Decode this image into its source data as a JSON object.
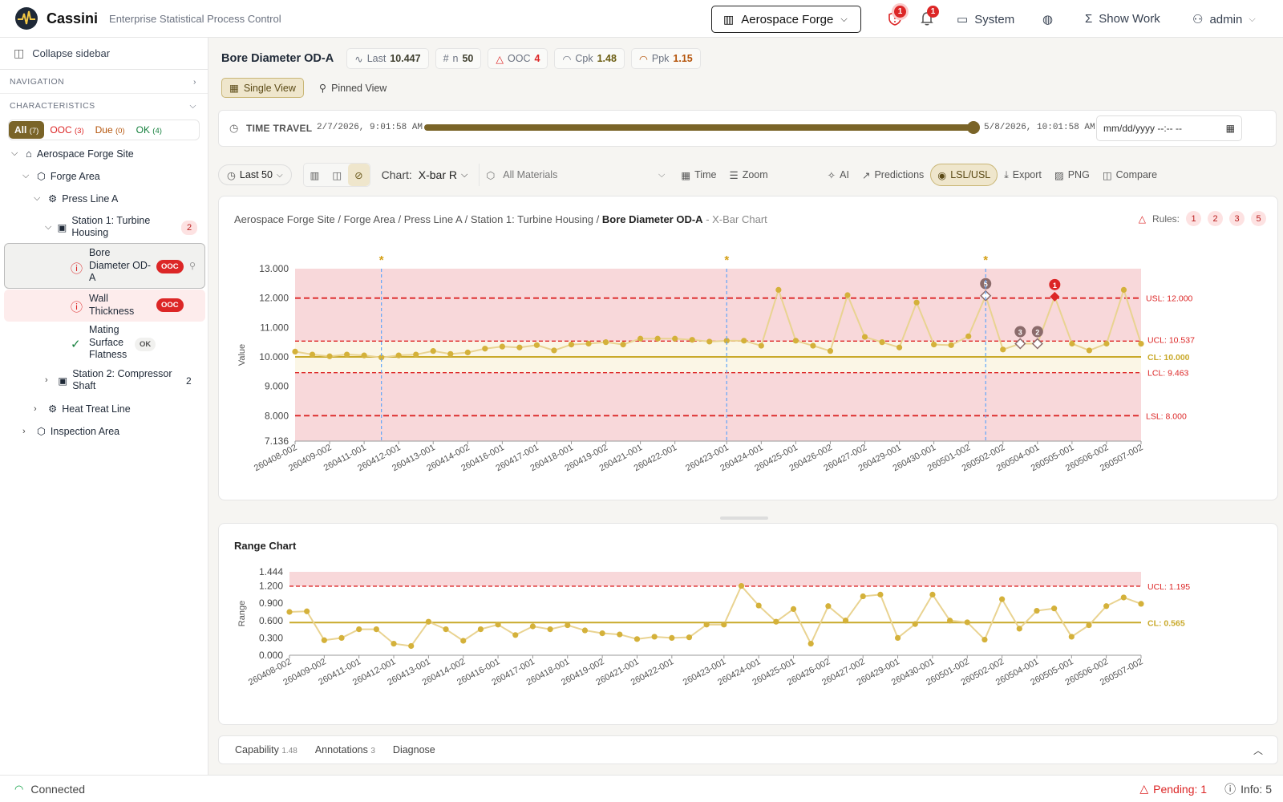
{
  "app": {
    "name": "Cassini",
    "subtitle": "Enterprise Statistical Process Control"
  },
  "header": {
    "plant": "Aerospace Forge",
    "violations_count": "1",
    "notifications_count": "1",
    "system_label": "System",
    "show_work_label": "Show Work",
    "user_label": "admin"
  },
  "sidebar": {
    "collapse_label": "Collapse sidebar",
    "navigation_label": "NAVIGATION",
    "characteristics_label": "CHARACTERISTICS",
    "filters": [
      {
        "label": "All",
        "count": "(7)"
      },
      {
        "label": "OOC",
        "count": "(3)"
      },
      {
        "label": "Due",
        "count": "(0)"
      },
      {
        "label": "OK",
        "count": "(4)"
      }
    ],
    "tree": {
      "site": "Aerospace Forge Site",
      "area": "Forge Area",
      "line": "Press Line A",
      "station1": "Station 1: Turbine Housing",
      "station1_count": "2",
      "char1": "Bore Diameter OD-A",
      "char1_status": "OOC",
      "char2": "Wall Thickness",
      "char2_status": "OOC",
      "char3": "Mating Surface Flatness",
      "char3_status": "OK",
      "station2": "Station 2: Compressor Shaft",
      "station2_count": "2",
      "line2": "Heat Treat Line",
      "area2": "Inspection Area"
    }
  },
  "main": {
    "title": "Bore Diameter OD-A",
    "stats": [
      {
        "label": "Last",
        "value": "10.447"
      },
      {
        "label": "n",
        "value": "50"
      },
      {
        "label": "OOC",
        "value": "4"
      },
      {
        "label": "Cpk",
        "value": "1.48"
      },
      {
        "label": "Ppk",
        "value": "1.15"
      }
    ],
    "views": {
      "single": "Single View",
      "pinned": "Pinned View"
    },
    "time_travel": {
      "label": "TIME TRAVEL",
      "start": "2/7/2026, 9:01:58 AM",
      "end": "5/8/2026, 10:01:58 AM",
      "input_placeholder": "mm/dd/yyyy --:-- --",
      "progress": 1.0
    },
    "toolbar": {
      "range": "Last 50",
      "chart_label": "Chart:",
      "chart_type": "X-bar R",
      "materials": "All Materials",
      "time": "Time",
      "zoom": "Zoom",
      "ai": "AI",
      "predictions": "Predictions",
      "lslusl": "LSL/USL",
      "export": "Export",
      "png": "PNG",
      "compare": "Compare"
    },
    "breadcrumb": {
      "path": "Aerospace Forge Site / Forge Area / Press Line A / Station 1: Turbine Housing / ",
      "current": "Bore Diameter OD-A",
      "suffix": " - X-Bar Chart"
    },
    "rules": {
      "label": "Rules:",
      "items": [
        "1",
        "2",
        "3",
        "5"
      ]
    },
    "range_title": "Range Chart",
    "bottom_tabs": [
      {
        "label": "Capability",
        "count": "1.48"
      },
      {
        "label": "Annotations",
        "count": "3"
      },
      {
        "label": "Diagnose",
        "count": ""
      }
    ]
  },
  "status": {
    "connection": "Connected",
    "pending": "Pending: 1",
    "info": "Info: 5"
  },
  "colors": {
    "accent": "#7a6428",
    "point": "#d4b13a",
    "ooc": "#dc2626",
    "center": "#c9a92a"
  },
  "chart_data": [
    {
      "type": "line",
      "title": "X-Bar Chart",
      "ylabel": "Value",
      "ylim": [
        7.136,
        13.0
      ],
      "yticks": [
        "13.000",
        "12.000",
        "11.000",
        "10.000",
        "9.000",
        "8.000",
        "7.136"
      ],
      "x_labels": [
        "260408-002",
        "260409-002",
        "260411-001",
        "260412-001",
        "260413-001",
        "260414-002",
        "260416-001",
        "260417-001",
        "260418-001",
        "260419-002",
        "260421-001",
        "260422-001",
        "260423-001",
        "260424-001",
        "260425-001",
        "260426-002",
        "260427-002",
        "260429-001",
        "260430-001",
        "260501-002",
        "260502-002",
        "260504-001",
        "260505-001",
        "260506-002",
        "260507-002"
      ],
      "values": [
        10.18,
        10.08,
        10.02,
        10.08,
        10.05,
        9.98,
        10.05,
        10.08,
        10.2,
        10.1,
        10.15,
        10.28,
        10.35,
        10.32,
        10.4,
        10.22,
        10.42,
        10.45,
        10.5,
        10.42,
        10.62,
        10.62,
        10.62,
        10.58,
        10.52,
        10.55,
        10.55,
        10.38,
        12.28,
        10.55,
        10.38,
        10.2,
        12.1,
        10.68,
        10.5,
        10.32,
        11.85,
        10.42,
        10.4,
        10.7,
        12.08,
        10.25,
        10.45,
        10.45,
        12.05,
        10.45,
        10.22,
        10.45,
        12.28,
        10.447
      ],
      "violations": [
        {
          "index": 40,
          "rule": "5"
        },
        {
          "index": 42,
          "rule": "3"
        },
        {
          "index": 43,
          "rule": "2"
        },
        {
          "index": 44,
          "rule": "1"
        }
      ],
      "annotations_at": [
        5,
        25,
        40
      ],
      "limits": {
        "usl": 12.0,
        "ucl": 10.537,
        "cl": 10.0,
        "lcl": 9.463,
        "lsl": 8.0
      },
      "limit_labels": {
        "usl": "USL: 12.000",
        "ucl": "UCL: 10.537",
        "cl": "CL: 10.000",
        "lcl": "LCL: 9.463",
        "lsl": "LSL: 8.000"
      }
    },
    {
      "type": "line",
      "title": "Range Chart",
      "ylabel": "Range",
      "ylim": [
        0.0,
        1.444
      ],
      "yticks": [
        "1.444",
        "1.200",
        "0.900",
        "0.600",
        "0.300",
        "0.000"
      ],
      "x_labels": [
        "260408-002",
        "260409-002",
        "260411-001",
        "260412-001",
        "260413-001",
        "260414-002",
        "260416-001",
        "260417-001",
        "260418-001",
        "260419-002",
        "260421-001",
        "260422-001",
        "260423-001",
        "260424-001",
        "260425-001",
        "260426-002",
        "260427-002",
        "260429-001",
        "260430-001",
        "260501-002",
        "260502-002",
        "260504-001",
        "260505-001",
        "260506-002",
        "260507-002"
      ],
      "values": [
        0.75,
        0.76,
        0.26,
        0.3,
        0.45,
        0.45,
        0.2,
        0.16,
        0.58,
        0.45,
        0.25,
        0.45,
        0.53,
        0.35,
        0.5,
        0.45,
        0.52,
        0.43,
        0.38,
        0.36,
        0.28,
        0.32,
        0.3,
        0.31,
        0.53,
        0.53,
        1.2,
        0.86,
        0.58,
        0.8,
        0.2,
        0.85,
        0.6,
        1.02,
        1.05,
        0.3,
        0.54,
        1.05,
        0.6,
        0.57,
        0.27,
        0.97,
        0.46,
        0.77,
        0.81,
        0.32,
        0.52,
        0.85,
        1.0,
        0.89
      ],
      "limits": {
        "ucl": 1.195,
        "cl": 0.565
      },
      "limit_labels": {
        "ucl": "UCL: 1.195",
        "cl": "CL: 0.565"
      }
    }
  ]
}
